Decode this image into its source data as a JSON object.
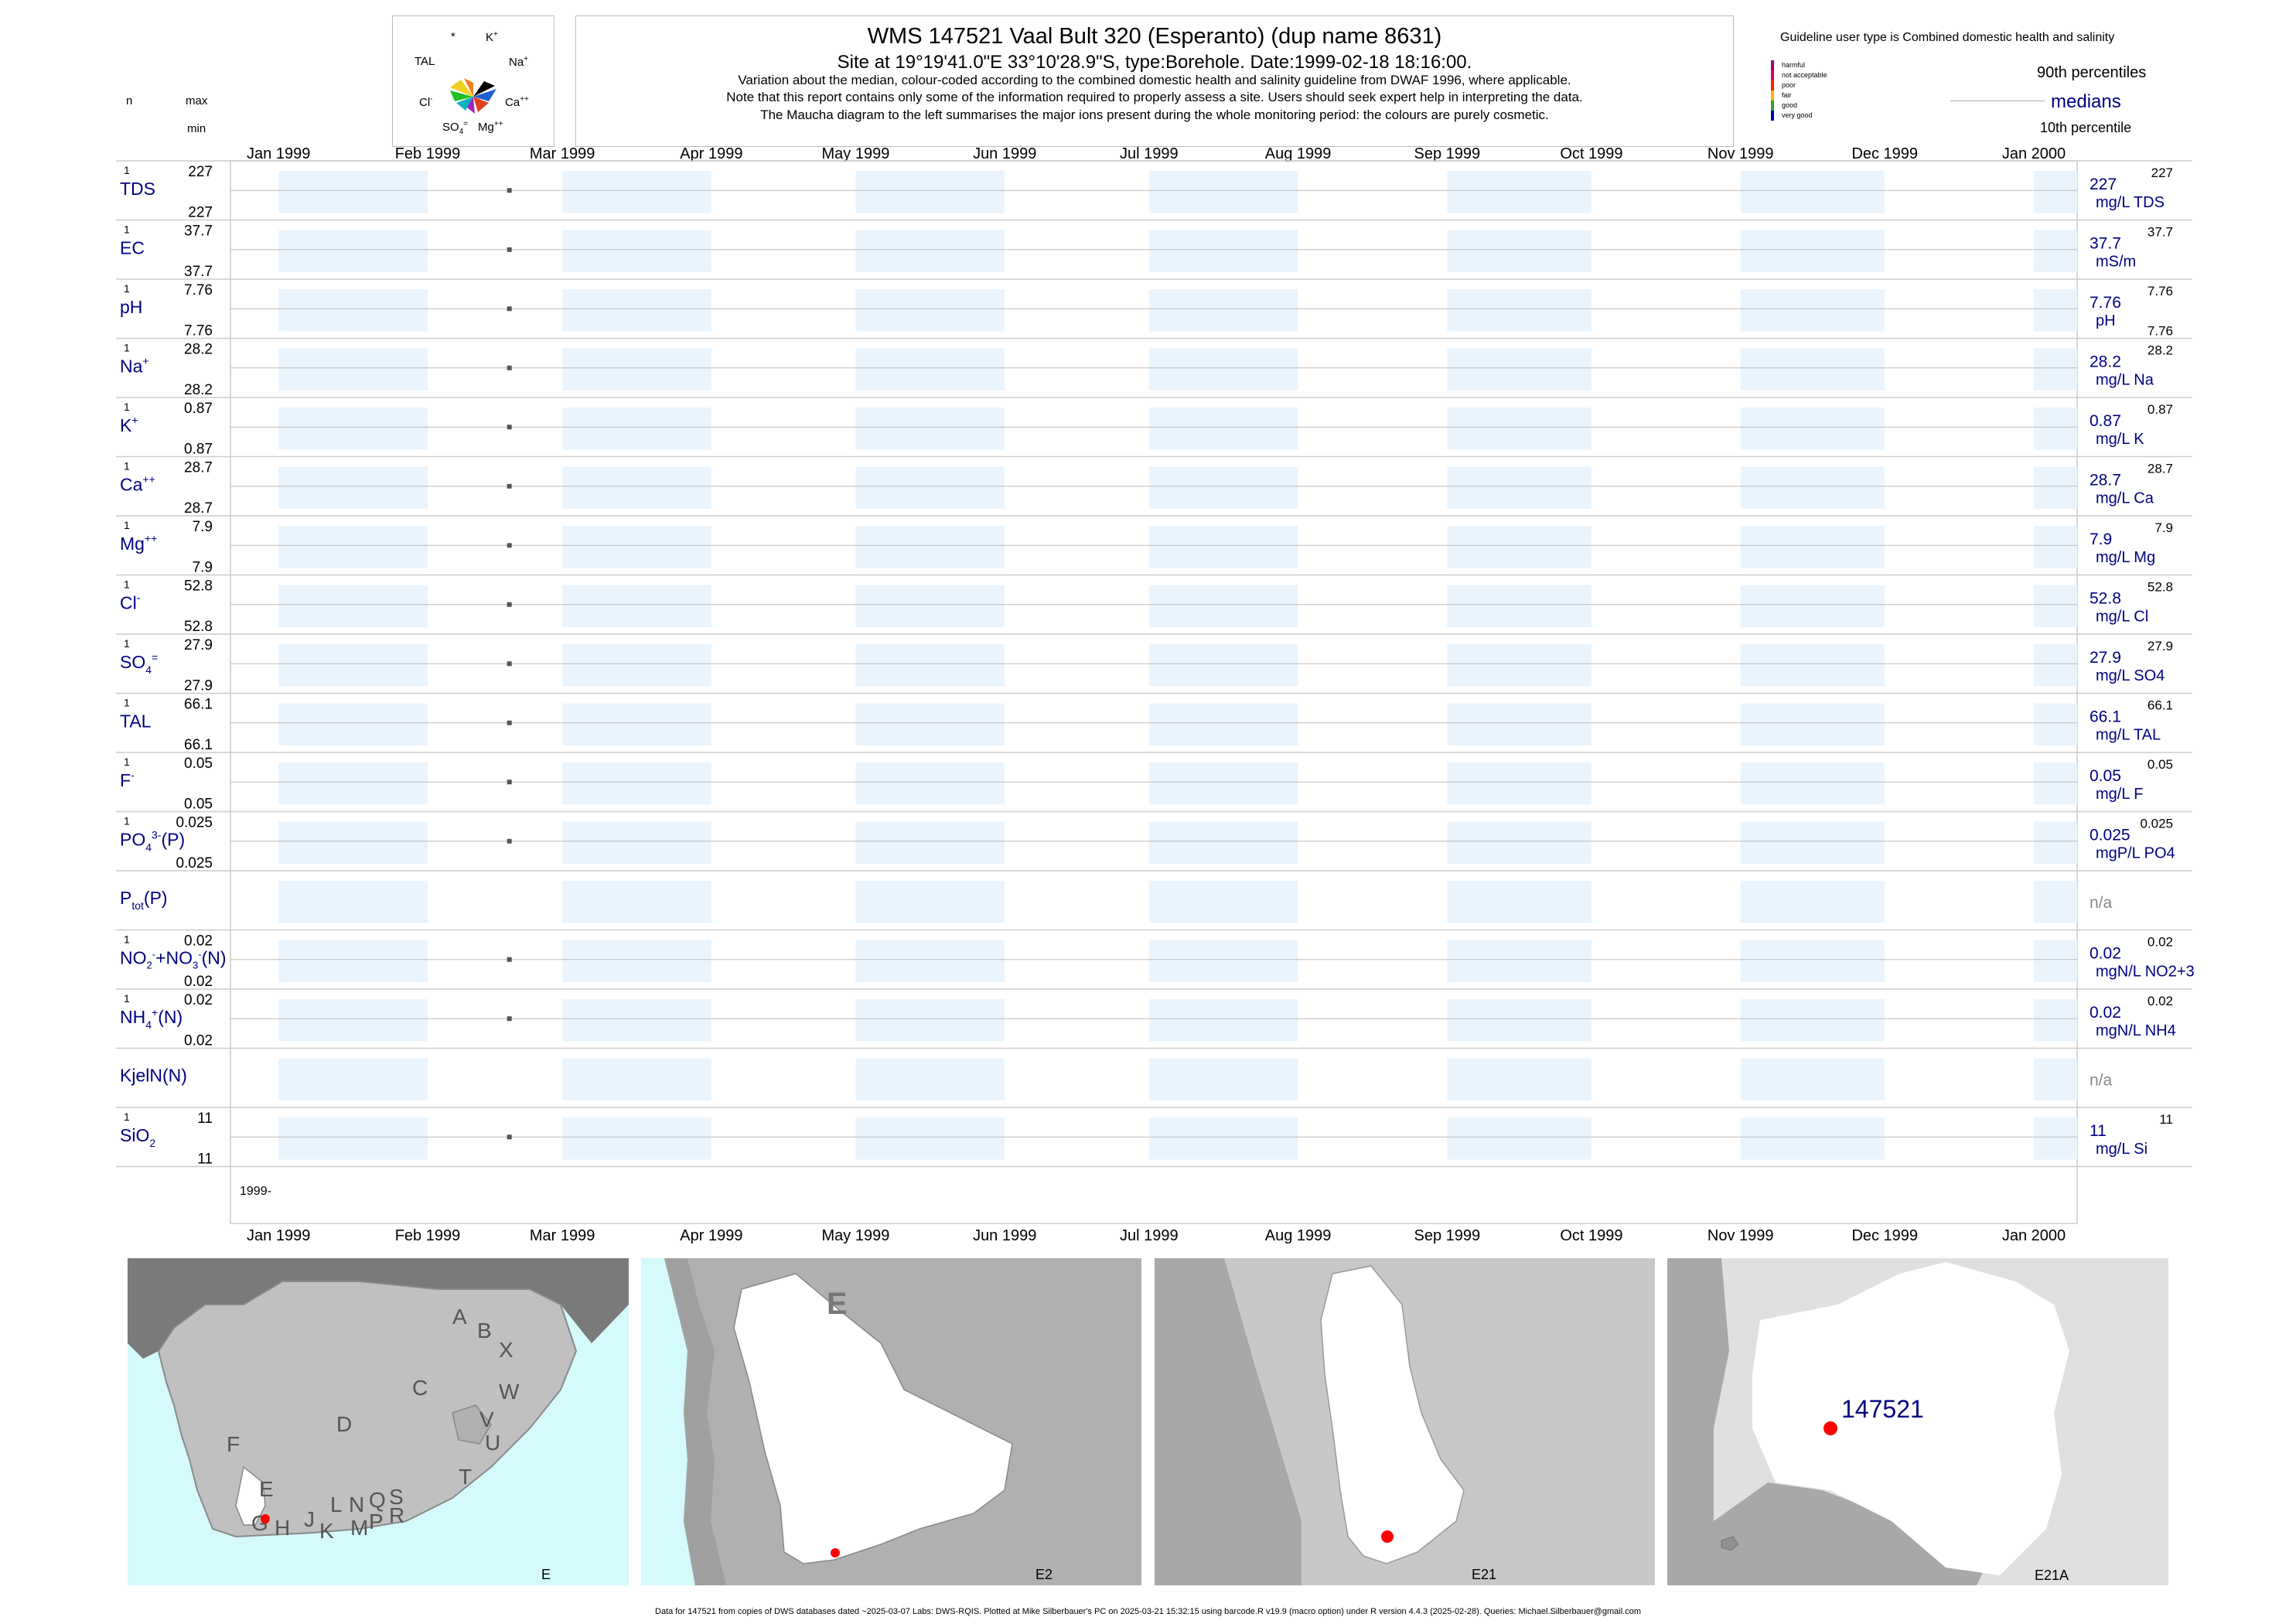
{
  "header": {
    "title": "WMS 147521  Vaal Bult 320 (Esperanto) (dup name 8631)",
    "site": "Site at 19°19'41.0\"E 33°10'28.9\"S, type:Borehole. Date:1999-02-18 18:16:00.",
    "note1": "Variation about the median,  colour-coded according to the combined domestic health and salinity guideline from DWAF 1996, where applicable.",
    "note2": "Note that this report contains only some of the information required to properly assess a site. Users should seek expert help in interpreting the data.",
    "note3": "The Maucha diagram to the left summarises the major ions present during the whole monitoring period: the colours are purely cosmetic."
  },
  "maucha": {
    "star": "*",
    "k": "K+",
    "na": "Na+",
    "tal": "TAL",
    "cl": "Cl-",
    "ca": "Ca++",
    "so4": "SO4=",
    "mg": "Mg++"
  },
  "left_header": {
    "n": "n",
    "max": "max",
    "min": "min"
  },
  "legend": {
    "guideline": "Guideline user type is Combined domestic health and salinity",
    "classes": [
      "harmful",
      "not acceptable",
      "poor",
      "fair",
      "good",
      "very good"
    ],
    "class_colors": [
      "#a0007a",
      "#e0006a",
      "#ff2000",
      "#ffb000",
      "#30a030",
      "#0000a0"
    ],
    "p90": "90th percentiles",
    "medians": "medians",
    "p10": "10th percentile"
  },
  "chart_data": {
    "type": "scatter",
    "x_axis": {
      "months": [
        "Jan 1999",
        "Feb 1999",
        "Mar 1999",
        "Apr 1999",
        "May 1999",
        "Jun 1999",
        "Jul 1999",
        "Aug 1999",
        "Sep 1999",
        "Oct 1999",
        "Nov 1999",
        "Dec 1999",
        "Jan 2000"
      ],
      "range": [
        "1998-12-22",
        "2000-01-10"
      ],
      "year_label": "1999-"
    },
    "sample_date": "1999-02-18",
    "panels": [
      {
        "label": "TDS",
        "sup": "",
        "sub": "",
        "suffix": "",
        "n": "1",
        "max": "227",
        "min": "227",
        "median": "227",
        "p90": "227",
        "p10": "",
        "unit": "mg/L TDS",
        "value": 227
      },
      {
        "label": "EC",
        "sup": "",
        "sub": "",
        "suffix": "",
        "n": "1",
        "max": "37.7",
        "min": "37.7",
        "median": "37.7",
        "p90": "37.7",
        "p10": "",
        "unit": "mS/m",
        "value": 37.7
      },
      {
        "label": "pH",
        "sup": "",
        "sub": "",
        "suffix": "",
        "n": "1",
        "max": "7.76",
        "min": "7.76",
        "median": "7.76",
        "p90": "7.76",
        "p10": "7.76",
        "unit": "pH",
        "value": 7.76
      },
      {
        "label": "Na",
        "sup": "+",
        "sub": "",
        "suffix": "",
        "n": "1",
        "max": "28.2",
        "min": "28.2",
        "median": "28.2",
        "p90": "28.2",
        "p10": "",
        "unit": "mg/L Na",
        "value": 28.2
      },
      {
        "label": "K",
        "sup": "+",
        "sub": "",
        "suffix": "",
        "n": "1",
        "max": "0.87",
        "min": "0.87",
        "median": "0.87",
        "p90": "0.87",
        "p10": "",
        "unit": "mg/L K",
        "value": 0.87
      },
      {
        "label": "Ca",
        "sup": "++",
        "sub": "",
        "suffix": "",
        "n": "1",
        "max": "28.7",
        "min": "28.7",
        "median": "28.7",
        "p90": "28.7",
        "p10": "",
        "unit": "mg/L Ca",
        "value": 28.7
      },
      {
        "label": "Mg",
        "sup": "++",
        "sub": "",
        "suffix": "",
        "n": "1",
        "max": "7.9",
        "min": "7.9",
        "median": "7.9",
        "p90": "7.9",
        "p10": "",
        "unit": "mg/L Mg",
        "value": 7.9
      },
      {
        "label": "Cl",
        "sup": "-",
        "sub": "",
        "suffix": "",
        "n": "1",
        "max": "52.8",
        "min": "52.8",
        "median": "52.8",
        "p90": "52.8",
        "p10": "",
        "unit": "mg/L Cl",
        "value": 52.8
      },
      {
        "label": "SO",
        "sup": "=",
        "sub": "4",
        "suffix": "",
        "n": "1",
        "max": "27.9",
        "min": "27.9",
        "median": "27.9",
        "p90": "27.9",
        "p10": "",
        "unit": "mg/L SO4",
        "value": 27.9
      },
      {
        "label": "TAL",
        "sup": "",
        "sub": "",
        "suffix": "",
        "n": "1",
        "max": "66.1",
        "min": "66.1",
        "median": "66.1",
        "p90": "66.1",
        "p10": "",
        "unit": "mg/L TAL",
        "value": 66.1
      },
      {
        "label": "F",
        "sup": "-",
        "sub": "",
        "suffix": "",
        "n": "1",
        "max": "0.05",
        "min": "0.05",
        "median": "0.05",
        "p90": "0.05",
        "p10": "",
        "unit": "mg/L F",
        "value": 0.05
      },
      {
        "label": "PO",
        "sup": "3-",
        "sub": "4",
        "suffix": "(P)",
        "n": "1",
        "max": "0.025",
        "min": "0.025",
        "median": "0.025",
        "p90": "0.025",
        "p10": "",
        "unit": "mgP/L PO4",
        "value": 0.025
      },
      {
        "label": "P",
        "sup": "",
        "sub": "tot",
        "suffix": "(P)",
        "n": "",
        "max": "",
        "min": "",
        "median": "n/a",
        "p90": "",
        "p10": "",
        "unit": "",
        "value": null
      },
      {
        "label": "NO2+NO3(N)",
        "sup": "",
        "sub": "",
        "suffix": "",
        "n": "1",
        "max": "0.02",
        "min": "0.02",
        "median": "0.02",
        "p90": "0.02",
        "p10": "",
        "unit": "mgN/L NO2+3",
        "value": 0.02
      },
      {
        "label": "NH",
        "sup": "+",
        "sub": "4",
        "suffix": "(N)",
        "n": "1",
        "max": "0.02",
        "min": "0.02",
        "median": "0.02",
        "p90": "0.02",
        "p10": "",
        "unit": "mgN/L NH4",
        "value": 0.02
      },
      {
        "label": "KjelN(N)",
        "sup": "",
        "sub": "",
        "suffix": "",
        "n": "",
        "max": "",
        "min": "",
        "median": "n/a",
        "p90": "",
        "p10": "",
        "unit": "",
        "value": null
      },
      {
        "label": "SiO",
        "sup": "",
        "sub": "2",
        "suffix": "",
        "n": "1",
        "max": "11",
        "min": "11",
        "median": "11",
        "p90": "11",
        "p10": "",
        "unit": "mg/L Si",
        "value": 11
      }
    ]
  },
  "maps": {
    "labels": [
      "E",
      "E2",
      "E21",
      "E21A"
    ],
    "regions": [
      "A",
      "B",
      "X",
      "C",
      "W",
      "D",
      "V",
      "U",
      "F",
      "E",
      "T",
      "G",
      "H",
      "J",
      "L",
      "N",
      "Q",
      "S",
      "K",
      "M",
      "P",
      "R"
    ],
    "big_label": "E",
    "site_id": "147521"
  },
  "footer": "Data for 147521 from copies of DWS databases dated ~2025-03-07 Labs: DWS-RQIS. Plotted at Mike Silberbauer's PC on 2025-03-21 15:32:15 using barcode.R v19.9 (macro option) under R version 4.4.3 (2025-02-28). Queries: Michael.Silberbauer@gmail.com",
  "colors": {
    "navy": "#000080",
    "band": "#eaf4fc",
    "sea": "#d4fafc",
    "land": "#c0c0c0",
    "grey": "#a8a8a8",
    "site": "#ff0000"
  }
}
